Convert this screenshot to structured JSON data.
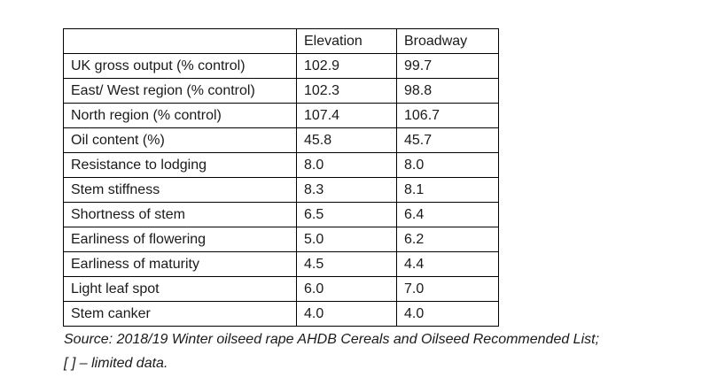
{
  "table": {
    "header": {
      "label": "",
      "elevation": "Elevation",
      "broadway": "Broadway"
    },
    "rows": [
      {
        "label": "UK gross output (% control)",
        "elevation": "102.9",
        "broadway": "99.7"
      },
      {
        "label": "East/ West region (% control)",
        "elevation": "102.3",
        "broadway": "98.8"
      },
      {
        "label": "North region (% control)",
        "elevation": "107.4",
        "broadway": "106.7"
      },
      {
        "label": "Oil content (%)",
        "elevation": "45.8",
        "broadway": "45.7"
      },
      {
        "label": "Resistance to lodging",
        "elevation": "8.0",
        "broadway": "8.0"
      },
      {
        "label": "Stem stiffness",
        "elevation": "8.3",
        "broadway": "8.1"
      },
      {
        "label": "Shortness of stem",
        "elevation": "6.5",
        "broadway": "6.4"
      },
      {
        "label": "Earliness of flowering",
        "elevation": "5.0",
        "broadway": "6.2"
      },
      {
        "label": "Earliness of maturity",
        "elevation": "4.5",
        "broadway": "4.4"
      },
      {
        "label": "Light leaf spot",
        "elevation": "6.0",
        "broadway": "7.0"
      },
      {
        "label": "Stem canker",
        "elevation": "4.0",
        "broadway": "4.0"
      }
    ]
  },
  "source": {
    "line1": "Source: 2018/19 Winter oilseed rape AHDB Cereals and Oilseed Recommended List;",
    "line2": "[ ] – limited data."
  }
}
